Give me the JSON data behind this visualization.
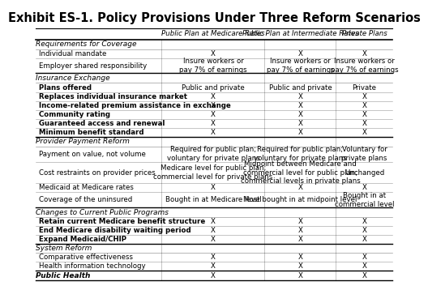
{
  "title": "Exhibit ES-1. Policy Provisions Under Three Reform Scenarios",
  "col_headers": [
    "",
    "Public Plan at Medicare Rates",
    "Public Plan at Intermediate Rates",
    "Private Plans"
  ],
  "sections": [
    {
      "header": "Requirements for Coverage",
      "rows": [
        {
          "label": "Individual mandate",
          "bold": false,
          "cols": [
            "X",
            "X",
            "X"
          ]
        },
        {
          "label": "Employer shared responsibility",
          "bold": false,
          "cols": [
            "Insure workers or\npay 7% of earnings",
            "Insure workers or\npay 7% of earnings",
            "Insure workers or\npay 7% of earnings"
          ]
        }
      ]
    },
    {
      "header": "Insurance Exchange",
      "rows": [
        {
          "label": "Plans offered",
          "bold": true,
          "cols": [
            "Public and private",
            "Public and private",
            "Private"
          ]
        },
        {
          "label": "Replaces individual insurance market",
          "bold": true,
          "cols": [
            "X",
            "X",
            "X"
          ]
        },
        {
          "label": "Income-related premium assistance in exchange",
          "bold": true,
          "cols": [
            "X",
            "X",
            "X"
          ]
        },
        {
          "label": "Community rating",
          "bold": true,
          "cols": [
            "X",
            "X",
            "X"
          ]
        },
        {
          "label": "Guaranteed access and renewal",
          "bold": true,
          "cols": [
            "X",
            "X",
            "X"
          ]
        },
        {
          "label": "Minimum benefit standard",
          "bold": true,
          "cols": [
            "X",
            "X",
            "X"
          ]
        }
      ]
    },
    {
      "header": "Provider Payment Reform",
      "rows": [
        {
          "label": "Payment on value, not volume",
          "bold": false,
          "cols": [
            "Required for public plan;\nvoluntary for private plans",
            "Required for public plan;\nvoluntary for private plans",
            "Voluntary for\nprivate plans"
          ]
        },
        {
          "label": "Cost restraints on provider prices",
          "bold": false,
          "cols": [
            "Medicare level for public plan;\ncommercial level for private plans",
            "Midpoint between Medicare and\ncommercial level for public plan;\ncommercial levels in private plans",
            "Unchanged"
          ]
        },
        {
          "label": "Medicaid at Medicare rates",
          "bold": false,
          "cols": [
            "X",
            "X",
            "X"
          ]
        },
        {
          "label": "Coverage of the uninsured",
          "bold": false,
          "cols": [
            "Bought in at Medicare level",
            "Most bought in at midpoint level",
            "Bought in at\ncommercial level"
          ]
        }
      ]
    },
    {
      "header": "Changes to Current Public Programs",
      "rows": [
        {
          "label": "Retain current Medicare benefit structure",
          "bold": true,
          "cols": [
            "X",
            "X",
            "X"
          ]
        },
        {
          "label": "End Medicare disability waiting period",
          "bold": true,
          "cols": [
            "X",
            "X",
            "X"
          ]
        },
        {
          "label": "Expand Medicaid/CHIP",
          "bold": true,
          "cols": [
            "X",
            "X",
            "X"
          ]
        }
      ]
    },
    {
      "header": "System Reform",
      "rows": [
        {
          "label": "Comparative effectiveness",
          "bold": false,
          "cols": [
            "X",
            "X",
            "X"
          ]
        },
        {
          "label": "Health information technology",
          "bold": false,
          "cols": [
            "X",
            "X",
            "X"
          ]
        }
      ]
    },
    {
      "header": "Public Health",
      "is_bold_header": true,
      "rows": [
        {
          "label": "",
          "bold": false,
          "cols": [
            "X",
            "X",
            "X"
          ]
        }
      ]
    }
  ]
}
